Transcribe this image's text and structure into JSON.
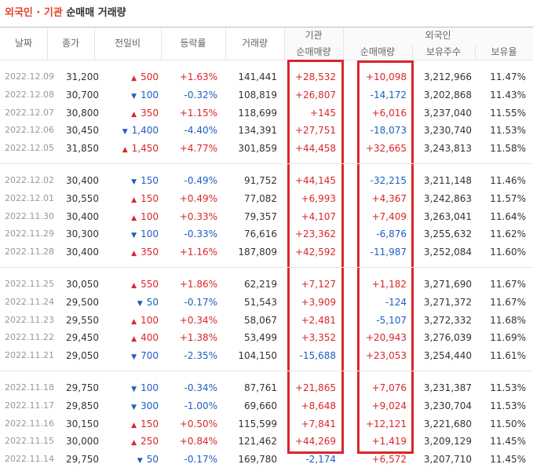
{
  "title": {
    "highlight": "외국인 · 기관",
    "rest": "순매매 거래량"
  },
  "header": {
    "date": "날짜",
    "close": "종가",
    "change": "전일비",
    "rate": "등락률",
    "volume": "거래량",
    "institution": "기관",
    "institution_net": "순매매량",
    "foreign": "외국인",
    "foreign_net": "순매매량",
    "holdings": "보유주수",
    "ratio": "보유율"
  },
  "groups": [
    [
      [
        "2022.12.09",
        "31,200",
        "▲",
        "500",
        "+1.63%",
        "141,441",
        "+28,532",
        "+10,098",
        "3,212,966",
        "11.47%"
      ],
      [
        "2022.12.08",
        "30,700",
        "▼",
        "100",
        "-0.32%",
        "108,819",
        "+26,807",
        "-14,172",
        "3,202,868",
        "11.43%"
      ],
      [
        "2022.12.07",
        "30,800",
        "▲",
        "350",
        "+1.15%",
        "118,699",
        "+145",
        "+6,016",
        "3,237,040",
        "11.55%"
      ],
      [
        "2022.12.06",
        "30,450",
        "▼",
        "1,400",
        "-4.40%",
        "134,391",
        "+27,751",
        "-18,073",
        "3,230,740",
        "11.53%"
      ],
      [
        "2022.12.05",
        "31,850",
        "▲",
        "1,450",
        "+4.77%",
        "301,859",
        "+44,458",
        "+32,665",
        "3,243,813",
        "11.58%"
      ]
    ],
    [
      [
        "2022.12.02",
        "30,400",
        "▼",
        "150",
        "-0.49%",
        "91,752",
        "+44,145",
        "-32,215",
        "3,211,148",
        "11.46%"
      ],
      [
        "2022.12.01",
        "30,550",
        "▲",
        "150",
        "+0.49%",
        "77,082",
        "+6,993",
        "+4,367",
        "3,242,863",
        "11.57%"
      ],
      [
        "2022.11.30",
        "30,400",
        "▲",
        "100",
        "+0.33%",
        "79,357",
        "+4,107",
        "+7,409",
        "3,263,041",
        "11.64%"
      ],
      [
        "2022.11.29",
        "30,300",
        "▼",
        "100",
        "-0.33%",
        "76,616",
        "+23,362",
        "-6,876",
        "3,255,632",
        "11.62%"
      ],
      [
        "2022.11.28",
        "30,400",
        "▲",
        "350",
        "+1.16%",
        "187,809",
        "+42,592",
        "-11,987",
        "3,252,084",
        "11.60%"
      ]
    ],
    [
      [
        "2022.11.25",
        "30,050",
        "▲",
        "550",
        "+1.86%",
        "62,219",
        "+7,127",
        "+1,182",
        "3,271,690",
        "11.67%"
      ],
      [
        "2022.11.24",
        "29,500",
        "▼",
        "50",
        "-0.17%",
        "51,543",
        "+3,909",
        "-124",
        "3,271,372",
        "11.67%"
      ],
      [
        "2022.11.23",
        "29,550",
        "▲",
        "100",
        "+0.34%",
        "58,067",
        "+2,481",
        "-5,107",
        "3,272,332",
        "11.68%"
      ],
      [
        "2022.11.22",
        "29,450",
        "▲",
        "400",
        "+1.38%",
        "53,499",
        "+3,352",
        "+20,943",
        "3,276,039",
        "11.69%"
      ],
      [
        "2022.11.21",
        "29,050",
        "▼",
        "700",
        "-2.35%",
        "104,150",
        "-15,688",
        "+23,053",
        "3,254,440",
        "11.61%"
      ]
    ],
    [
      [
        "2022.11.18",
        "29,750",
        "▼",
        "100",
        "-0.34%",
        "87,761",
        "+21,865",
        "+7,076",
        "3,231,387",
        "11.53%"
      ],
      [
        "2022.11.17",
        "29,850",
        "▼",
        "300",
        "-1.00%",
        "69,660",
        "+8,648",
        "+9,024",
        "3,230,704",
        "11.53%"
      ],
      [
        "2022.11.16",
        "30,150",
        "▲",
        "150",
        "+0.50%",
        "115,599",
        "+7,841",
        "+12,121",
        "3,221,680",
        "11.50%"
      ],
      [
        "2022.11.15",
        "30,000",
        "▲",
        "250",
        "+0.84%",
        "121,462",
        "+44,269",
        "+1,419",
        "3,209,129",
        "11.45%"
      ],
      [
        "2022.11.14",
        "29,750",
        "▼",
        "50",
        "-0.17%",
        "169,780",
        "-2,174",
        "+6,572",
        "3,207,710",
        "11.45%"
      ]
    ]
  ]
}
